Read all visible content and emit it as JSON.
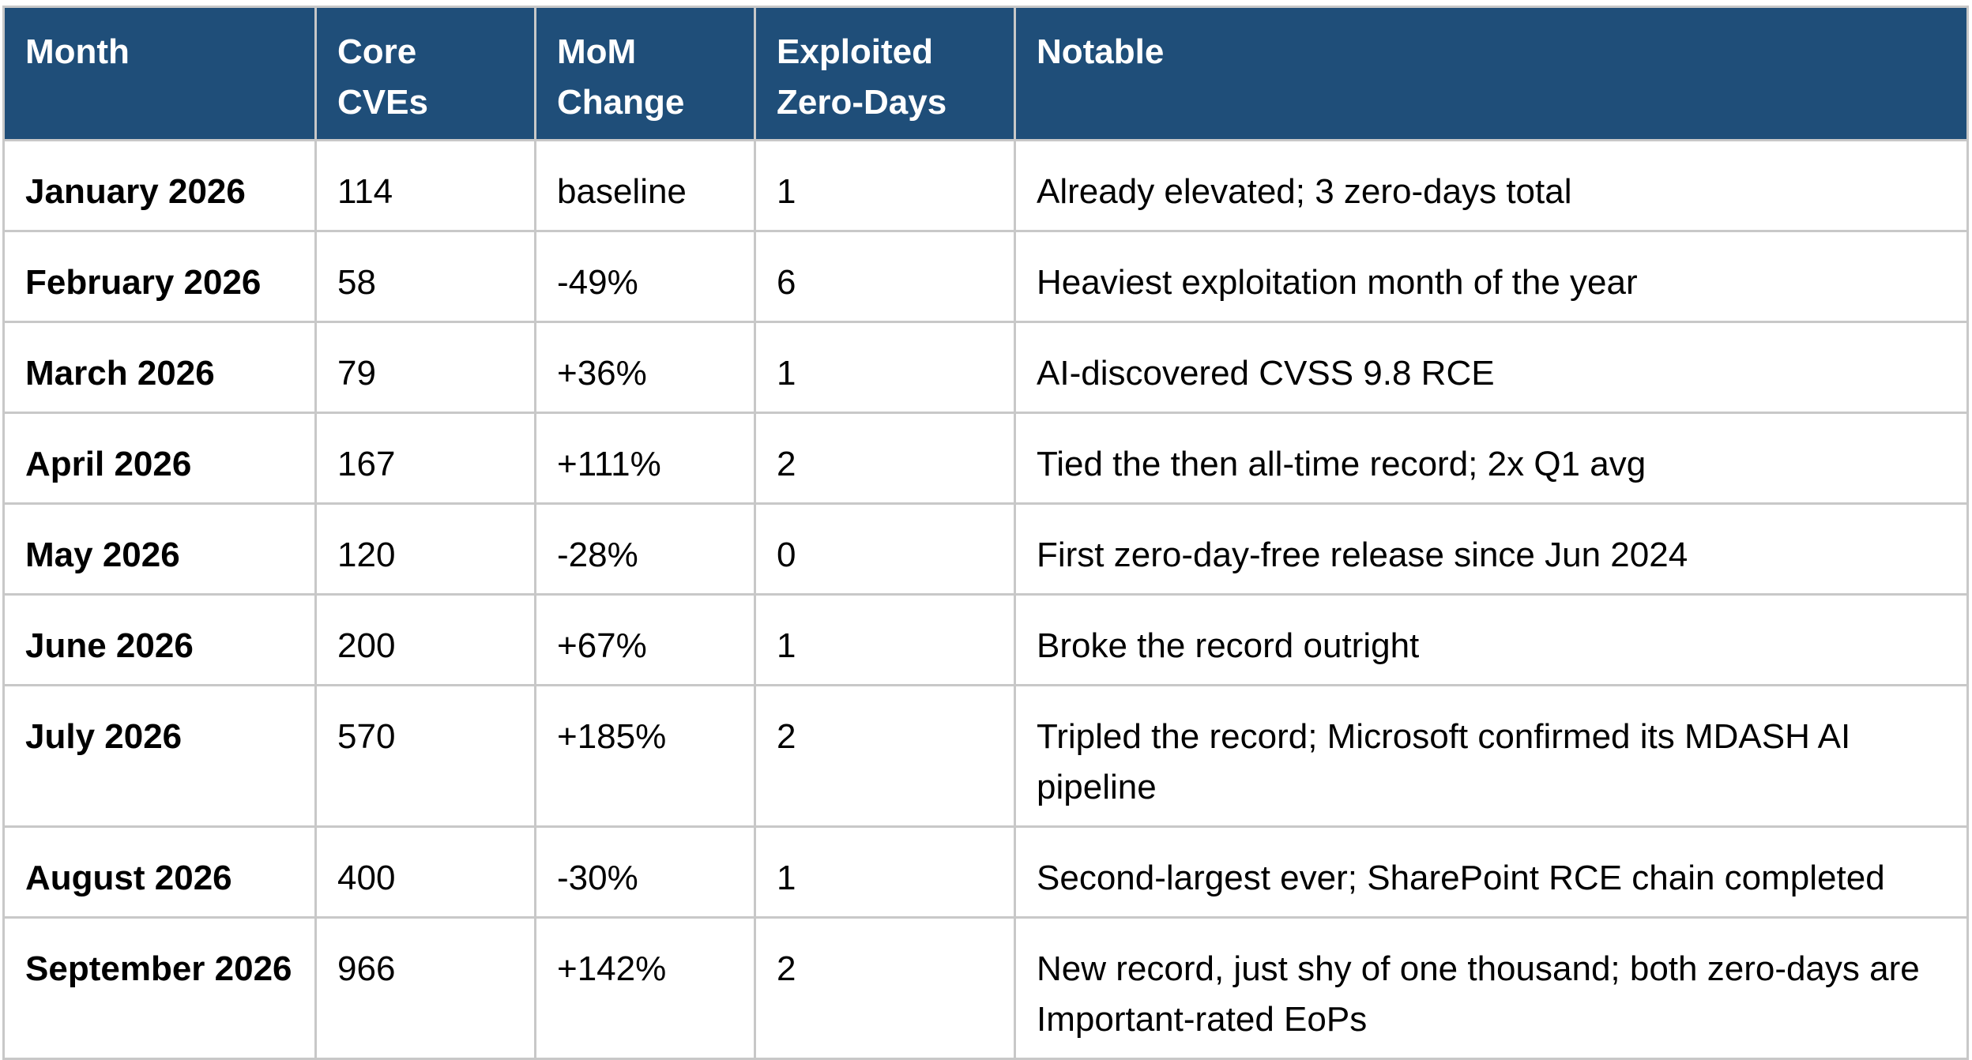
{
  "table": {
    "headers": {
      "month": "Month",
      "core_cves": "Core CVEs",
      "mom_change": "MoM Change",
      "exploited_zero_days": "Exploited Zero-Days",
      "notable": "Notable"
    },
    "rows": [
      {
        "month": "January 2026",
        "core_cves": "114",
        "mom_change": "baseline",
        "zero_days": "1",
        "notable": "Already elevated; 3 zero-days total"
      },
      {
        "month": "February 2026",
        "core_cves": "58",
        "mom_change": "-49%",
        "zero_days": "6",
        "notable": "Heaviest exploitation month of the year"
      },
      {
        "month": "March 2026",
        "core_cves": "79",
        "mom_change": "+36%",
        "zero_days": "1",
        "notable": "AI-discovered CVSS 9.8 RCE"
      },
      {
        "month": "April 2026",
        "core_cves": "167",
        "mom_change": "+111%",
        "zero_days": "2",
        "notable": "Tied the then all-time record; 2x Q1 avg"
      },
      {
        "month": "May 2026",
        "core_cves": "120",
        "mom_change": "-28%",
        "zero_days": "0",
        "notable": "First zero-day-free release since Jun 2024"
      },
      {
        "month": "June 2026",
        "core_cves": "200",
        "mom_change": "+67%",
        "zero_days": "1",
        "notable": "Broke the record outright"
      },
      {
        "month": "July 2026",
        "core_cves": "570",
        "mom_change": "+185%",
        "zero_days": "2",
        "notable": "Tripled the record; Microsoft confirmed its MDASH AI pipeline"
      },
      {
        "month": "August 2026",
        "core_cves": "400",
        "mom_change": "-30%",
        "zero_days": "1",
        "notable": "Second-largest ever; SharePoint RCE chain completed"
      },
      {
        "month": "September 2026",
        "core_cves": "966",
        "mom_change": "+142%",
        "zero_days": "2",
        "notable": "New record, just shy of one thousand; both zero-days are Important-rated EoPs"
      }
    ]
  },
  "colors": {
    "header_background": "#1f4e79",
    "header_text": "#ffffff",
    "grid_lines": "#c8c8c8"
  }
}
